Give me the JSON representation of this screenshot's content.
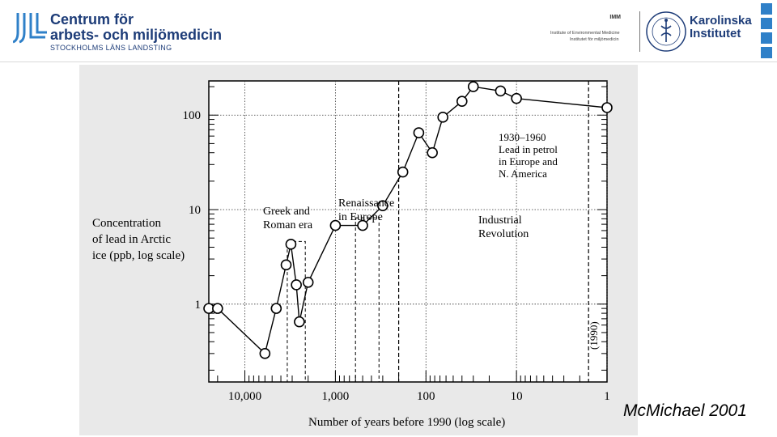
{
  "header": {
    "org_line1": "Centrum för",
    "org_line2": "arbets- och miljömedicin",
    "org_line3": "STOCKHOLMS LÄNS LANDSTING",
    "imm_mark": "IMM",
    "imm_line1": "Institute of Environmental Medicine",
    "imm_line2": "Institutet för miljömedicin",
    "ki_line1": "Karolinska",
    "ki_line2": "Institutet",
    "accent_color": "#1d3c78",
    "bar_color": "#2f80c8"
  },
  "chart_data": {
    "type": "line",
    "x_scale": "log",
    "y_scale": "log",
    "ylabel": "Concentration of lead in Arctic ice (ppb, log scale)",
    "xlabel": "Number of years before 1990 (log scale)",
    "x_ticks": [
      "10,000",
      "1,000",
      "100",
      "10",
      "1"
    ],
    "y_ticks": [
      "100",
      "10",
      "1"
    ],
    "xlim_years_before_1990": [
      25000,
      1
    ],
    "ylim_ppb": [
      0.15,
      230
    ],
    "annotations": {
      "greek": "Greek and Roman era",
      "renaissance": "Renaissance in Europe",
      "industrial": "Industrial Revolution",
      "petrol": "1930–1960 Lead in petrol in Europe and N. America",
      "year_1990": "(1990)"
    },
    "series": [
      {
        "x_years_before_1990": [
          25000,
          20000,
          6000,
          4500,
          3500,
          3100,
          2700,
          2500,
          2000,
          1000,
          500,
          300,
          180,
          120,
          85,
          65,
          40,
          30,
          15,
          10,
          1
        ],
        "y_ppb": [
          0.9,
          0.9,
          0.3,
          0.9,
          2.6,
          4.3,
          1.6,
          0.65,
          1.7,
          6.8,
          6.8,
          11,
          25,
          65,
          40,
          95,
          140,
          200,
          180,
          150,
          120
        ]
      }
    ]
  },
  "citation": "McMichael 2001"
}
